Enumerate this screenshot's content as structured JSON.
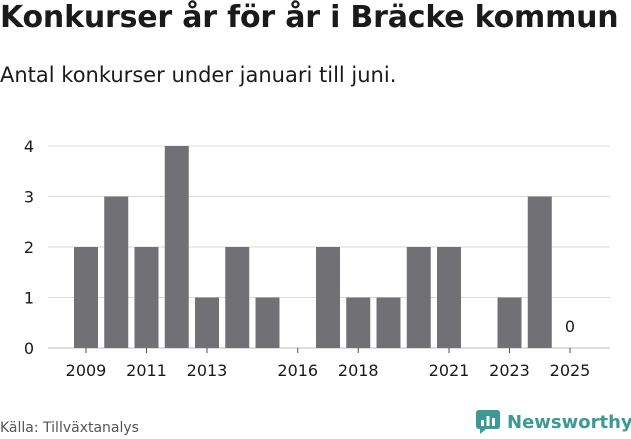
{
  "header": {
    "title": "Konkurser år för år i Bräcke kommun",
    "subtitle": "Antal konkurser under januari till juni."
  },
  "footer": {
    "source": "Källa: Tillväxtanalys",
    "brand": "Newsworthy",
    "brand_icon": "newsworthy-logo-icon"
  },
  "colors": {
    "bar": "#717075",
    "grid": "#d9d9d9",
    "text": "#1a1a1a",
    "brand": "#3d9a92"
  },
  "chart_data": {
    "type": "bar",
    "x": [
      2009,
      2010,
      2011,
      2012,
      2013,
      2014,
      2015,
      2016,
      2017,
      2018,
      2019,
      2020,
      2021,
      2022,
      2023,
      2024,
      2025
    ],
    "values": [
      2,
      3,
      2,
      4,
      1,
      2,
      1,
      0,
      2,
      1,
      1,
      2,
      2,
      0,
      1,
      3,
      0
    ],
    "x_tick_labels": [
      "2009",
      "2011",
      "2013",
      "2016",
      "2018",
      "2021",
      "2023",
      "2025"
    ],
    "y_ticks": [
      0,
      1,
      2,
      3,
      4
    ],
    "ylim": [
      0,
      4
    ],
    "annotations": [
      {
        "x": 2025,
        "text": "0"
      }
    ],
    "grid": true,
    "legend": "none"
  }
}
